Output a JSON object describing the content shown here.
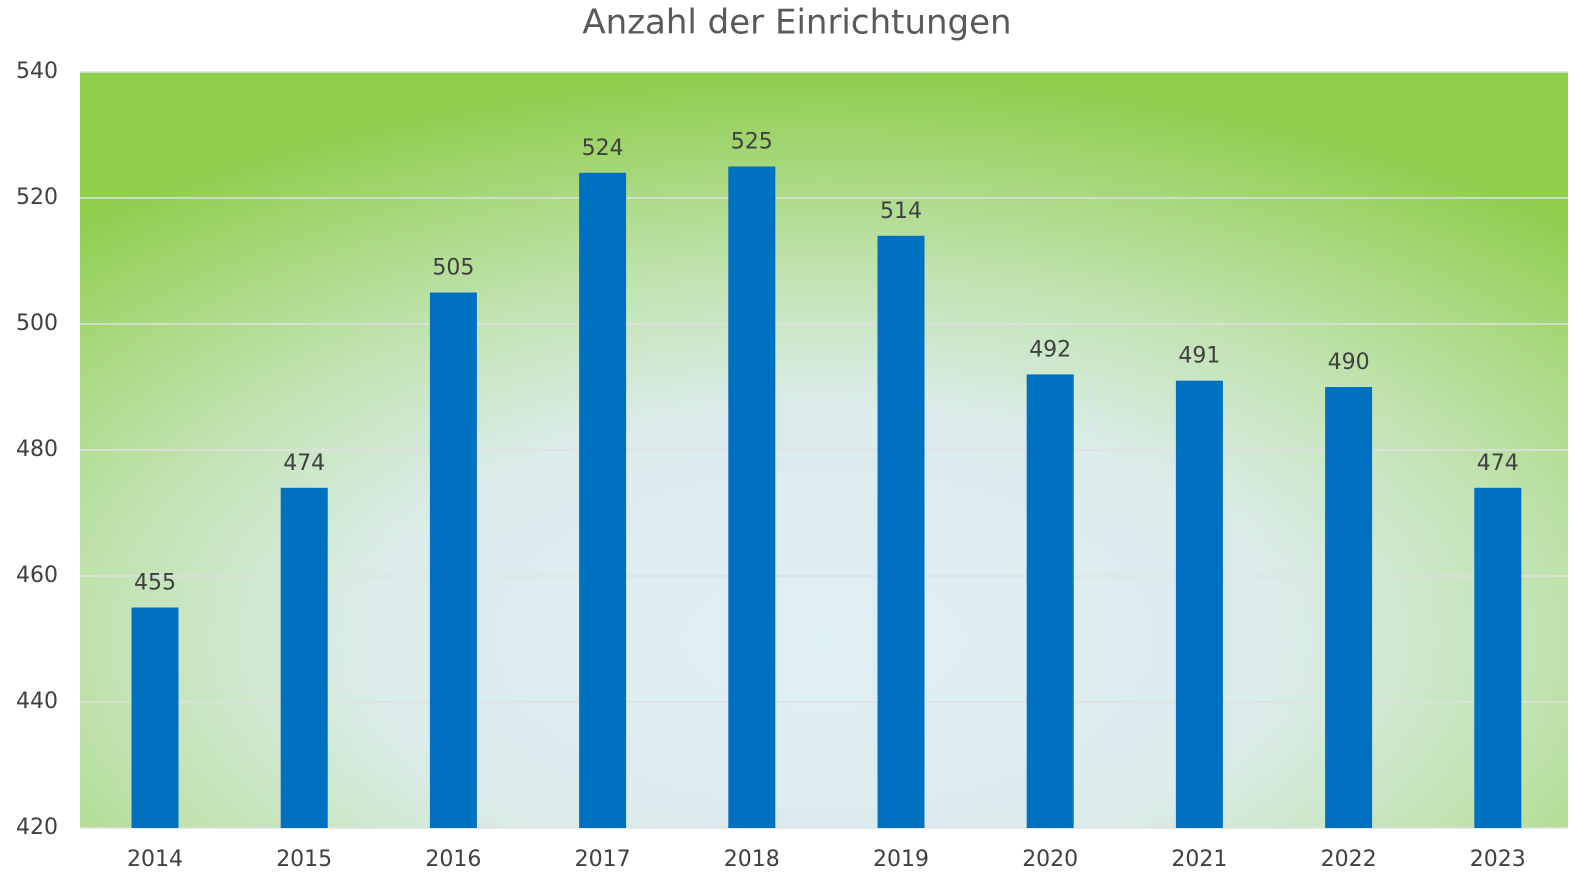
{
  "chart_data": {
    "type": "bar",
    "title": "Anzahl der Einrichtungen",
    "categories": [
      "2014",
      "2015",
      "2016",
      "2017",
      "2018",
      "2019",
      "2020",
      "2021",
      "2022",
      "2023"
    ],
    "values": [
      455,
      474,
      505,
      524,
      525,
      514,
      492,
      491,
      490,
      474
    ],
    "color": "#0070c0",
    "ylim": [
      420,
      540
    ],
    "yticks": [
      420,
      440,
      460,
      480,
      500,
      520,
      540
    ],
    "grid": true
  }
}
